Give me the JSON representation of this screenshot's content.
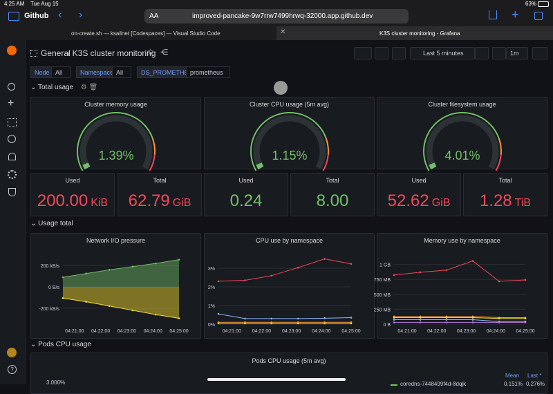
{
  "status_bar": {
    "time": "4:25 AM",
    "date": "Tue Aug 15",
    "battery": "63%"
  },
  "browser": {
    "app": "Github",
    "text_size": "AA",
    "url": "improved-pancake-9w7rrw7499hrwq-32000.app.github.dev",
    "tabs": [
      "on-create.sh — ksailnet [Codespaces] — Visual Studio Code",
      "K3S cluster monitoring - Grafana"
    ]
  },
  "header": {
    "folder": "General",
    "title": "/ K3S cluster monitoring",
    "time_range": "Last 5 minutes",
    "refresh": "1m"
  },
  "variables": [
    {
      "label": "Node",
      "value": "All"
    },
    {
      "label": "Namespace",
      "value": "All"
    },
    {
      "label": "DS_PROMETHEUS",
      "value": "prometheus"
    }
  ],
  "rows": [
    "Total usage",
    "Usage total",
    "Pods CPU usage"
  ],
  "gauges": [
    {
      "title": "Cluster memory usage",
      "value": "1.39%"
    },
    {
      "title": "Cluster CPU usage (5m avg)",
      "value": "1.15%"
    },
    {
      "title": "Cluster filesystem usage",
      "value": "4.01%"
    }
  ],
  "stats": [
    {
      "title": "Used",
      "value": "200.00",
      "unit": "KiB",
      "color": "#f2495c"
    },
    {
      "title": "Total",
      "value": "62.79",
      "unit": "GiB",
      "color": "#f2495c"
    },
    {
      "title": "Used",
      "value": "0.24",
      "color": "#73bf69"
    },
    {
      "title": "Total",
      "value": "8.00",
      "color": "#73bf69"
    },
    {
      "title": "Used",
      "value": "52.62",
      "unit": "GiB",
      "color": "#f2495c"
    },
    {
      "title": "Total",
      "value": "1.28",
      "unit": "TiB",
      "color": "#f2495c"
    }
  ],
  "chart_data": [
    {
      "type": "area",
      "title": "Network I/O pressure",
      "x_labels": [
        "04:21:00",
        "04:22:00",
        "04:23:00",
        "04:24:00",
        "04:25:00"
      ],
      "ylim": [
        -350,
        350
      ],
      "yticks": [
        {
          "value": 200,
          "label": "200 kB/s"
        },
        {
          "value": 0,
          "label": "0 B/s"
        },
        {
          "value": -200,
          "label": "-200 kB/s"
        }
      ],
      "grid": true,
      "markers": true,
      "series": [
        {
          "color": "#73bf69",
          "values": [
            90,
            125,
            160,
            190,
            220,
            255
          ]
        },
        {
          "color": "#fade2a",
          "values": [
            -105,
            -140,
            -180,
            -220,
            -260,
            -295
          ]
        }
      ]
    },
    {
      "type": "line",
      "title": "CPU use by namespace",
      "x_labels": [
        "04:21:00",
        "04:22:00",
        "04:23:00",
        "04:24:00",
        "04:25:00"
      ],
      "ylim": [
        0,
        4
      ],
      "yticks": [
        {
          "value": 3,
          "label": "3%"
        },
        {
          "value": 2,
          "label": "2%"
        },
        {
          "value": 1,
          "label": "1%"
        },
        {
          "value": 0,
          "label": "0%"
        }
      ],
      "grid": true,
      "markers": true,
      "series": [
        {
          "color": "#f2495c",
          "values": [
            2.3,
            2.35,
            2.6,
            3.03,
            3.5,
            3.23
          ]
        },
        {
          "color": "#8ab8ff",
          "values": [
            0.55,
            0.3,
            0.3,
            0.3,
            0.32,
            0.35
          ]
        },
        {
          "color": "#ff9830",
          "values": [
            0.1,
            0.1,
            0.1,
            0.1,
            0.1,
            0.1
          ]
        },
        {
          "color": "#fade2a",
          "values": [
            0.04,
            0.04,
            0.04,
            0.04,
            0.04,
            0.04
          ]
        }
      ]
    },
    {
      "type": "line",
      "title": "Memory use by namespace",
      "x_labels": [
        "04:21:00",
        "04:22:00",
        "04:23:00",
        "04:24:00",
        "04:25:00"
      ],
      "ylim": [
        0,
        1250
      ],
      "yticks": [
        {
          "value": 1000,
          "label": "1 GB"
        },
        {
          "value": 750,
          "label": "750 MB"
        },
        {
          "value": 500,
          "label": "500 MB"
        },
        {
          "value": 250,
          "label": "250 MB"
        },
        {
          "value": 0,
          "label": "0 B"
        }
      ],
      "grid": true,
      "markers": true,
      "series": [
        {
          "color": "#f2495c",
          "values": [
            823,
            870,
            905,
            1060,
            718,
            741
          ]
        },
        {
          "color": "#ff9830",
          "values": [
            130,
            130,
            130,
            130,
            110,
            110
          ]
        },
        {
          "color": "#fade2a",
          "values": [
            110,
            110,
            110,
            110,
            95,
            95
          ]
        },
        {
          "color": "#8ab8ff",
          "values": [
            75,
            75,
            75,
            75,
            45,
            45
          ]
        },
        {
          "color": "#b877d9",
          "values": [
            30,
            30,
            30,
            30,
            30,
            30
          ]
        }
      ]
    }
  ],
  "pods_panel": {
    "title": "Pods CPU usage (5m avg)",
    "ytick": "3.000%",
    "legend_headers": [
      "Mean",
      "Last *"
    ],
    "rows": [
      {
        "name": "coredns-7448499f4d-8dqjk",
        "mean": "0.151%",
        "last": "0.276%"
      }
    ]
  }
}
